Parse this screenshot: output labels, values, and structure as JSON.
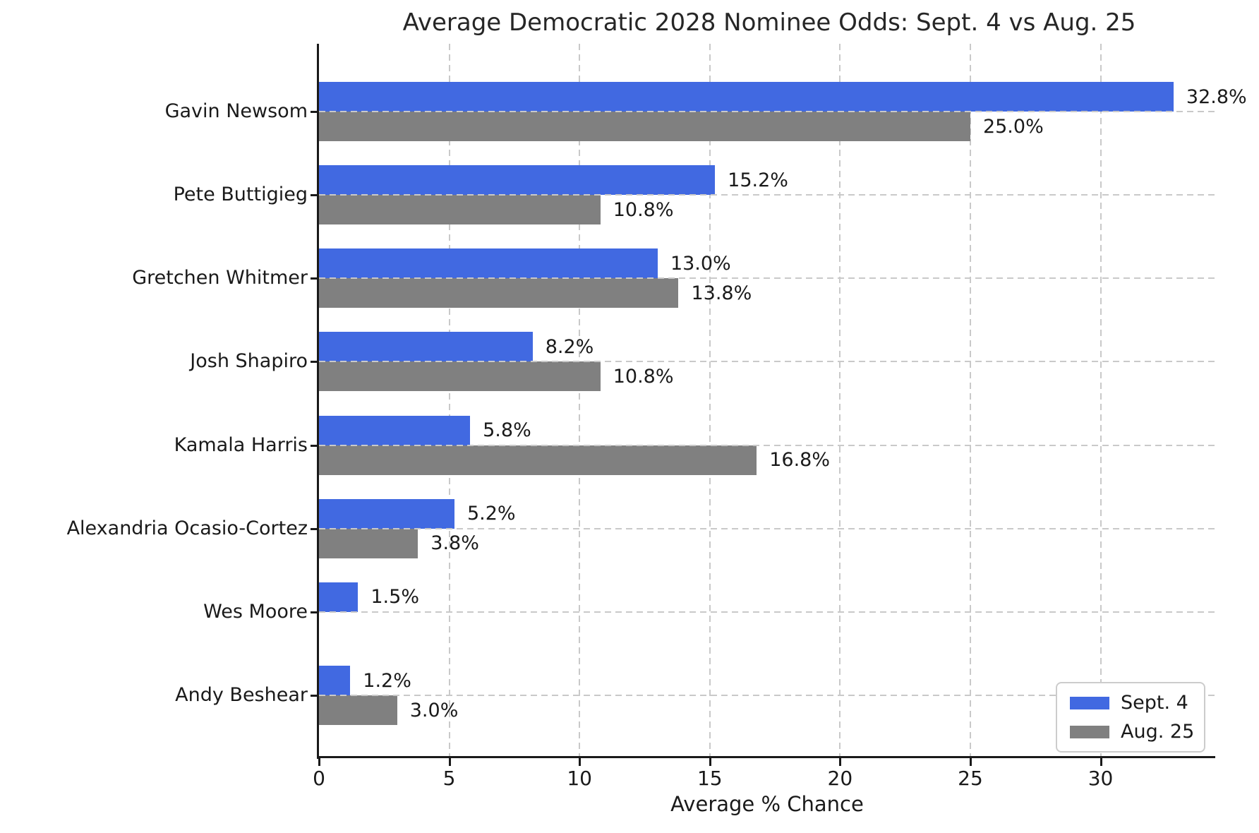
{
  "chart_data": {
    "type": "bar",
    "orientation": "horizontal",
    "title": "Average Democratic 2028 Nominee Odds: Sept. 4 vs Aug. 25",
    "xlabel": "Average % Chance",
    "value_suffix": "%",
    "categories": [
      "Gavin Newsom",
      "Pete Buttigieg",
      "Gretchen Whitmer",
      "Josh Shapiro",
      "Kamala Harris",
      "Alexandria Ocasio-Cortez",
      "Wes Moore",
      "Andy Beshear"
    ],
    "series": [
      {
        "name": "Sept. 4",
        "color": "#4169E1",
        "values": [
          32.8,
          15.2,
          13.0,
          8.2,
          5.8,
          5.2,
          1.5,
          1.2
        ]
      },
      {
        "name": "Aug. 25",
        "color": "#808080",
        "values": [
          25.0,
          10.8,
          13.8,
          10.8,
          16.8,
          3.8,
          null,
          3.0
        ]
      }
    ],
    "data_labels": [
      [
        "32.8%",
        "15.2%",
        "13.0%",
        "8.2%",
        "5.8%",
        "5.2%",
        "1.5%",
        "1.2%"
      ],
      [
        "25.0%",
        "10.8%",
        "13.8%",
        "10.8%",
        "16.8%",
        "3.8%",
        null,
        "3.0%"
      ]
    ],
    "xticks": [
      0,
      5,
      10,
      15,
      20,
      25,
      30
    ],
    "xlim": [
      0,
      34.4
    ],
    "grid": true,
    "grid_style": "dashed",
    "grid_color": "#c9c9c9",
    "axis_color": "#1a1a1a",
    "text_color": "#1a1a1a",
    "legend_position": "lower right"
  }
}
